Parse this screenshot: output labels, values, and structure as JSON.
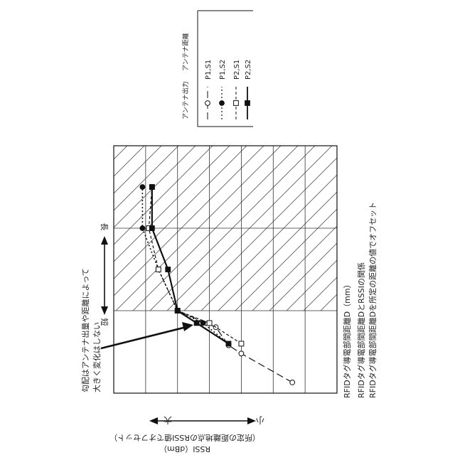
{
  "chart_data": {
    "type": "line",
    "orientation": "rotated-90-clockwise",
    "xlabel": "RFIDタグ導電部間距離D（mm）",
    "ylabel": "RSSI（dBm）",
    "ylabel_sub": "（所定の距離地点のRSSI値でオフセット）",
    "y_direction_labels": {
      "large": "大",
      "small": "小"
    },
    "x_direction_labels": {
      "short": "短",
      "long": "長"
    },
    "caption_lines": [
      "RFIDタグ導電部間距離DとRSSIの関係",
      "RFIDタグ導電部間距離Dを所定の距離の値でオフセット"
    ],
    "annotation": {
      "lines": [
        "勾配はアンテナ出量や距離によって",
        "大きく変化はしない"
      ]
    },
    "legend": {
      "header_output": "アンテナ出力",
      "header_distance": "アンテナ距離",
      "placement": "top-right"
    },
    "grid": true,
    "x_grid_major_count": 3,
    "y_grid_major_count": 7,
    "hatched_region_x": [
      1,
      3
    ],
    "xlim": [
      0,
      3
    ],
    "ylim": [
      -7,
      0
    ],
    "series": [
      {
        "name": "P1,S1",
        "marker": "open-circle",
        "line": "long-dash",
        "color": "#111111",
        "points": [
          [
            0.13,
            -5.6
          ],
          [
            0.48,
            -4.0
          ],
          [
            0.58,
            -3.6
          ],
          [
            0.8,
            -3.2
          ],
          [
            1.0,
            -2.0
          ]
        ]
      },
      {
        "name": "P1,S2",
        "marker": "filled-circle",
        "line": "dotted",
        "color": "#111111",
        "points": [
          [
            0.6,
            -3.6
          ],
          [
            0.85,
            -2.8
          ],
          [
            1.0,
            -2.0
          ],
          [
            1.5,
            -1.4
          ],
          [
            2.0,
            -0.9
          ],
          [
            2.5,
            -0.9
          ]
        ]
      },
      {
        "name": "P2,S1",
        "marker": "open-square",
        "line": "short-dash",
        "color": "#111111",
        "points": [
          [
            0.6,
            -4.0
          ],
          [
            0.85,
            -3.0
          ],
          [
            1.0,
            -2.0
          ],
          [
            1.5,
            -1.4
          ],
          [
            2.0,
            -1.1
          ],
          [
            2.5,
            -1.2
          ]
        ]
      },
      {
        "name": "P2,S2",
        "marker": "filled-square",
        "line": "solid",
        "color": "#111111",
        "points": [
          [
            0.6,
            -3.6
          ],
          [
            0.85,
            -2.6
          ],
          [
            1.0,
            -2.0
          ],
          [
            1.5,
            -1.7
          ],
          [
            2.0,
            -1.2
          ],
          [
            2.5,
            -1.2
          ]
        ]
      }
    ]
  }
}
